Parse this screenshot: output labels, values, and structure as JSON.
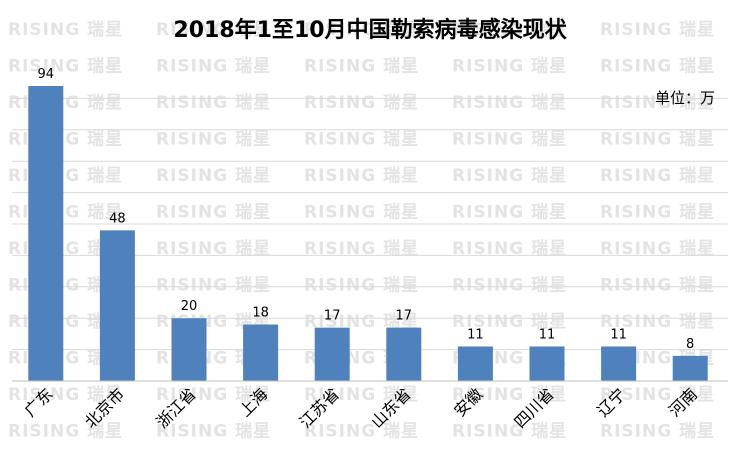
{
  "watermark": "RISING 瑞星",
  "chart_data": {
    "type": "bar",
    "title": "2018年1至10月中国勒索病毒感染现状",
    "unit_label": "单位：万",
    "categories": [
      "广东",
      "北京市",
      "浙江省",
      "上海",
      "江苏省",
      "山东省",
      "安徽",
      "四川省",
      "辽宁",
      "河南"
    ],
    "values": [
      94,
      48,
      20,
      18,
      17,
      17,
      11,
      11,
      11,
      8
    ],
    "ylim": [
      0,
      94
    ],
    "grid": true,
    "bar_color": "#4f81bd",
    "xlabel": "",
    "ylabel": ""
  }
}
